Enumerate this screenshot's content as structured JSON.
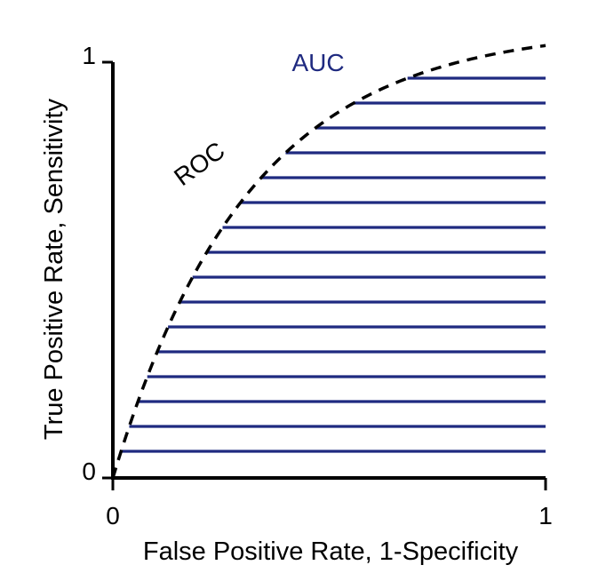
{
  "figure": {
    "x_axis_title": "False Positive Rate, 1-Specificity",
    "y_axis_title": "True Positive Rate, Sensitivity",
    "x_tick_labels": [
      "0",
      "1"
    ],
    "y_tick_labels": [
      "0",
      "1"
    ],
    "roc_label": "ROC",
    "auc_label": "AUC"
  },
  "colors": {
    "axis": "#000000",
    "roc_curve": "#000000",
    "auc_fill_lines": "#1f2a80",
    "auc_label": "#1f2a80",
    "text": "#000000"
  }
}
